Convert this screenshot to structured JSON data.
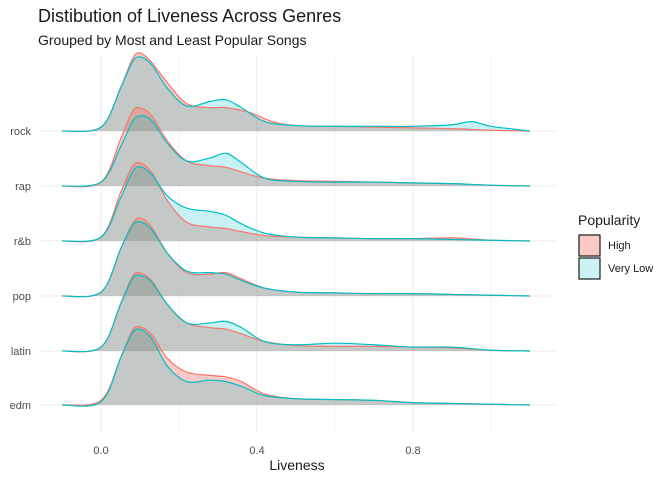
{
  "chart_data": {
    "type": "ridgeline-density",
    "title": "Distibution of Liveness Across Genres",
    "subtitle": "Grouped by Most and Least Popular Songs",
    "xlabel": "Liveness",
    "ylabel": "",
    "xlim": [
      -0.1,
      1.1
    ],
    "x_ticks": [
      "0.0",
      "0.4",
      "0.8"
    ],
    "x_tick_values": [
      0.0,
      0.4,
      0.8
    ],
    "grid": true,
    "legend": {
      "title": "Popularity",
      "position": "right",
      "entries": [
        "High",
        "Very Low"
      ]
    },
    "colors": {
      "High": "#F8766D",
      "Very Low": "#00BFC4",
      "overlap": "#B9A5C8"
    },
    "categories": [
      "edm",
      "latin",
      "pop",
      "r&b",
      "rap",
      "rock"
    ],
    "series": [
      {
        "name": "High",
        "densities": {
          "edm": [
            [
              -0.1,
              0
            ],
            [
              0.0,
              0.06
            ],
            [
              0.05,
              0.6
            ],
            [
              0.08,
              0.95
            ],
            [
              0.1,
              1.0
            ],
            [
              0.13,
              0.9
            ],
            [
              0.17,
              0.6
            ],
            [
              0.22,
              0.42
            ],
            [
              0.28,
              0.38
            ],
            [
              0.32,
              0.36
            ],
            [
              0.36,
              0.3
            ],
            [
              0.42,
              0.14
            ],
            [
              0.5,
              0.08
            ],
            [
              0.6,
              0.07
            ],
            [
              0.7,
              0.06
            ],
            [
              0.8,
              0.03
            ],
            [
              0.9,
              0.02
            ],
            [
              1.0,
              0.01
            ],
            [
              1.1,
              0
            ]
          ],
          "latin": [
            [
              -0.1,
              0
            ],
            [
              0.0,
              0.05
            ],
            [
              0.05,
              0.6
            ],
            [
              0.08,
              0.95
            ],
            [
              0.1,
              1.0
            ],
            [
              0.13,
              0.9
            ],
            [
              0.17,
              0.6
            ],
            [
              0.22,
              0.36
            ],
            [
              0.28,
              0.3
            ],
            [
              0.32,
              0.28
            ],
            [
              0.36,
              0.22
            ],
            [
              0.42,
              0.12
            ],
            [
              0.5,
              0.07
            ],
            [
              0.6,
              0.06
            ],
            [
              0.7,
              0.06
            ],
            [
              0.8,
              0.05
            ],
            [
              0.9,
              0.04
            ],
            [
              1.0,
              0.01
            ],
            [
              1.1,
              0
            ]
          ],
          "pop": [
            [
              -0.1,
              0
            ],
            [
              0.0,
              0.05
            ],
            [
              0.05,
              0.6
            ],
            [
              0.08,
              0.92
            ],
            [
              0.1,
              1.0
            ],
            [
              0.13,
              0.88
            ],
            [
              0.17,
              0.55
            ],
            [
              0.22,
              0.3
            ],
            [
              0.28,
              0.28
            ],
            [
              0.32,
              0.3
            ],
            [
              0.36,
              0.22
            ],
            [
              0.42,
              0.1
            ],
            [
              0.5,
              0.05
            ],
            [
              0.6,
              0.04
            ],
            [
              0.7,
              0.03
            ],
            [
              0.8,
              0.03
            ],
            [
              0.9,
              0.02
            ],
            [
              1.0,
              0.01
            ],
            [
              1.1,
              0
            ]
          ],
          "r&b": [
            [
              -0.1,
              0
            ],
            [
              0.0,
              0.05
            ],
            [
              0.05,
              0.62
            ],
            [
              0.08,
              0.95
            ],
            [
              0.1,
              1.0
            ],
            [
              0.13,
              0.88
            ],
            [
              0.17,
              0.52
            ],
            [
              0.22,
              0.24
            ],
            [
              0.28,
              0.18
            ],
            [
              0.32,
              0.16
            ],
            [
              0.36,
              0.12
            ],
            [
              0.42,
              0.07
            ],
            [
              0.5,
              0.05
            ],
            [
              0.6,
              0.04
            ],
            [
              0.7,
              0.03
            ],
            [
              0.8,
              0.03
            ],
            [
              0.9,
              0.04
            ],
            [
              1.0,
              0.01
            ],
            [
              1.1,
              0
            ]
          ],
          "rap": [
            [
              -0.1,
              0
            ],
            [
              0.0,
              0.05
            ],
            [
              0.05,
              0.6
            ],
            [
              0.08,
              0.95
            ],
            [
              0.1,
              1.0
            ],
            [
              0.13,
              0.9
            ],
            [
              0.17,
              0.58
            ],
            [
              0.22,
              0.32
            ],
            [
              0.28,
              0.26
            ],
            [
              0.32,
              0.24
            ],
            [
              0.36,
              0.18
            ],
            [
              0.42,
              0.1
            ],
            [
              0.5,
              0.07
            ],
            [
              0.6,
              0.06
            ],
            [
              0.7,
              0.05
            ],
            [
              0.8,
              0.04
            ],
            [
              0.9,
              0.03
            ],
            [
              1.0,
              0.01
            ],
            [
              1.1,
              0
            ]
          ],
          "rock": [
            [
              -0.1,
              0
            ],
            [
              0.0,
              0.05
            ],
            [
              0.05,
              0.55
            ],
            [
              0.08,
              0.92
            ],
            [
              0.1,
              1.0
            ],
            [
              0.13,
              0.88
            ],
            [
              0.17,
              0.62
            ],
            [
              0.22,
              0.35
            ],
            [
              0.28,
              0.3
            ],
            [
              0.32,
              0.3
            ],
            [
              0.38,
              0.24
            ],
            [
              0.44,
              0.12
            ],
            [
              0.5,
              0.07
            ],
            [
              0.6,
              0.06
            ],
            [
              0.7,
              0.05
            ],
            [
              0.8,
              0.04
            ],
            [
              0.9,
              0.03
            ],
            [
              1.0,
              0.01
            ],
            [
              1.1,
              0
            ]
          ]
        }
      },
      {
        "name": "Very Low",
        "densities": {
          "edm": [
            [
              -0.1,
              0
            ],
            [
              0.0,
              0.04
            ],
            [
              0.05,
              0.6
            ],
            [
              0.08,
              0.92
            ],
            [
              0.1,
              0.97
            ],
            [
              0.13,
              0.85
            ],
            [
              0.17,
              0.5
            ],
            [
              0.22,
              0.3
            ],
            [
              0.28,
              0.32
            ],
            [
              0.32,
              0.3
            ],
            [
              0.36,
              0.24
            ],
            [
              0.42,
              0.12
            ],
            [
              0.5,
              0.08
            ],
            [
              0.6,
              0.07
            ],
            [
              0.7,
              0.06
            ],
            [
              0.8,
              0.03
            ],
            [
              0.9,
              0.02
            ],
            [
              1.0,
              0.01
            ],
            [
              1.1,
              0
            ]
          ],
          "latin": [
            [
              -0.1,
              0
            ],
            [
              0.0,
              0.05
            ],
            [
              0.05,
              0.6
            ],
            [
              0.08,
              0.92
            ],
            [
              0.1,
              0.97
            ],
            [
              0.13,
              0.88
            ],
            [
              0.17,
              0.6
            ],
            [
              0.22,
              0.36
            ],
            [
              0.28,
              0.36
            ],
            [
              0.32,
              0.38
            ],
            [
              0.36,
              0.3
            ],
            [
              0.42,
              0.12
            ],
            [
              0.5,
              0.08
            ],
            [
              0.6,
              0.1
            ],
            [
              0.7,
              0.08
            ],
            [
              0.8,
              0.05
            ],
            [
              0.9,
              0.05
            ],
            [
              1.0,
              0.01
            ],
            [
              1.1,
              0
            ]
          ],
          "pop": [
            [
              -0.1,
              0
            ],
            [
              0.0,
              0.05
            ],
            [
              0.05,
              0.6
            ],
            [
              0.08,
              0.9
            ],
            [
              0.1,
              0.95
            ],
            [
              0.13,
              0.85
            ],
            [
              0.17,
              0.55
            ],
            [
              0.22,
              0.32
            ],
            [
              0.28,
              0.3
            ],
            [
              0.32,
              0.28
            ],
            [
              0.36,
              0.2
            ],
            [
              0.42,
              0.1
            ],
            [
              0.5,
              0.05
            ],
            [
              0.6,
              0.04
            ],
            [
              0.7,
              0.03
            ],
            [
              0.8,
              0.03
            ],
            [
              0.9,
              0.02
            ],
            [
              1.0,
              0.01
            ],
            [
              1.1,
              0
            ]
          ],
          "r&b": [
            [
              -0.1,
              0
            ],
            [
              0.0,
              0.05
            ],
            [
              0.05,
              0.55
            ],
            [
              0.08,
              0.88
            ],
            [
              0.1,
              0.95
            ],
            [
              0.13,
              0.85
            ],
            [
              0.17,
              0.58
            ],
            [
              0.22,
              0.42
            ],
            [
              0.28,
              0.38
            ],
            [
              0.32,
              0.33
            ],
            [
              0.36,
              0.22
            ],
            [
              0.42,
              0.1
            ],
            [
              0.5,
              0.05
            ],
            [
              0.6,
              0.04
            ],
            [
              0.7,
              0.03
            ],
            [
              0.8,
              0.03
            ],
            [
              0.9,
              0.02
            ],
            [
              1.0,
              0.01
            ],
            [
              1.1,
              0
            ]
          ],
          "rap": [
            [
              -0.1,
              0
            ],
            [
              0.0,
              0.05
            ],
            [
              0.05,
              0.5
            ],
            [
              0.08,
              0.82
            ],
            [
              0.1,
              0.9
            ],
            [
              0.13,
              0.84
            ],
            [
              0.17,
              0.55
            ],
            [
              0.22,
              0.32
            ],
            [
              0.28,
              0.36
            ],
            [
              0.32,
              0.42
            ],
            [
              0.36,
              0.3
            ],
            [
              0.42,
              0.1
            ],
            [
              0.5,
              0.06
            ],
            [
              0.6,
              0.05
            ],
            [
              0.7,
              0.05
            ],
            [
              0.8,
              0.04
            ],
            [
              0.9,
              0.03
            ],
            [
              1.0,
              0.01
            ],
            [
              1.1,
              0
            ]
          ],
          "rock": [
            [
              -0.1,
              0
            ],
            [
              0.0,
              0.05
            ],
            [
              0.05,
              0.55
            ],
            [
              0.08,
              0.88
            ],
            [
              0.1,
              0.95
            ],
            [
              0.13,
              0.85
            ],
            [
              0.17,
              0.55
            ],
            [
              0.22,
              0.32
            ],
            [
              0.28,
              0.38
            ],
            [
              0.32,
              0.4
            ],
            [
              0.36,
              0.3
            ],
            [
              0.42,
              0.12
            ],
            [
              0.5,
              0.07
            ],
            [
              0.6,
              0.06
            ],
            [
              0.7,
              0.06
            ],
            [
              0.8,
              0.06
            ],
            [
              0.9,
              0.08
            ],
            [
              0.95,
              0.12
            ],
            [
              1.0,
              0.06
            ],
            [
              1.1,
              0
            ]
          ]
        }
      }
    ]
  }
}
